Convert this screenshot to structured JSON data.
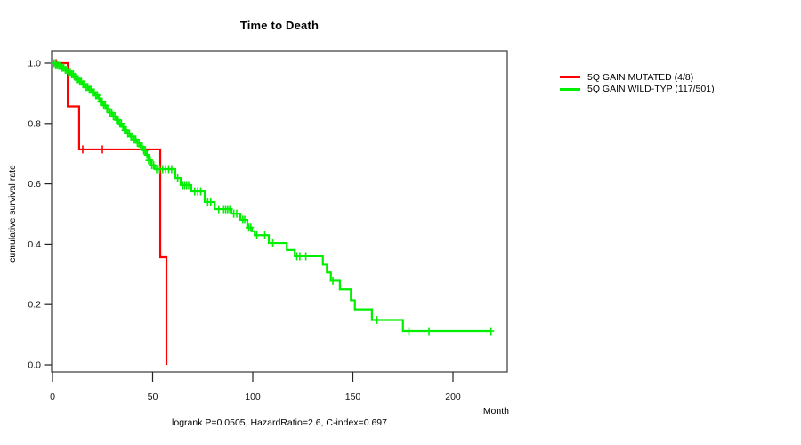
{
  "chart": {
    "title": "Time to Death",
    "ylabel": "cumulative survival rate",
    "xlabel": "Month",
    "footnote": "logrank P=0.0505, HazardRatio=2.6, C-index=0.697"
  },
  "chart_data": {
    "type": "line",
    "subtype": "kaplan-meier-step-curve",
    "title": "Time to Death",
    "xlabel": "Month",
    "ylabel": "cumulative survival rate",
    "xlim": [
      0,
      227
    ],
    "ylim": [
      0,
      1.0
    ],
    "xticks": [
      0,
      50,
      100,
      150,
      200
    ],
    "yticks": [
      0.0,
      0.2,
      0.4,
      0.6,
      0.8,
      1.0
    ],
    "grid": false,
    "legend_position": "right-outside",
    "axis_color": "#464646",
    "series": [
      {
        "name": "5Q GAIN MUTATED (4/8)",
        "color": "#ff0000",
        "end_month": 56.9,
        "steps": [
          [
            0,
            1.0
          ],
          [
            7.6,
            0.857
          ],
          [
            13.3,
            0.714
          ],
          [
            53.8,
            0.357
          ],
          [
            56.9,
            0.0
          ]
        ],
        "censor_months": [
          1.8,
          15.1,
          24.9
        ]
      },
      {
        "name": "5Q GAIN WILD-TYP (117/501)",
        "color": "#00ee00",
        "end_month": 219,
        "steps": [
          [
            0,
            1.0
          ],
          [
            1.5,
            0.996
          ],
          [
            3,
            0.991
          ],
          [
            4.5,
            0.985
          ],
          [
            6,
            0.978
          ],
          [
            7.5,
            0.971
          ],
          [
            9,
            0.963
          ],
          [
            10.5,
            0.955
          ],
          [
            12,
            0.947
          ],
          [
            13.5,
            0.939
          ],
          [
            15,
            0.93
          ],
          [
            16.5,
            0.921
          ],
          [
            18,
            0.912
          ],
          [
            19.5,
            0.903
          ],
          [
            21,
            0.894
          ],
          [
            22.5,
            0.884
          ],
          [
            24,
            0.872
          ],
          [
            25.5,
            0.86
          ],
          [
            27,
            0.848
          ],
          [
            28.5,
            0.836
          ],
          [
            30,
            0.824
          ],
          [
            31.5,
            0.812
          ],
          [
            33,
            0.8
          ],
          [
            34.5,
            0.789
          ],
          [
            36,
            0.778
          ],
          [
            37.5,
            0.767
          ],
          [
            39,
            0.757
          ],
          [
            40.5,
            0.747
          ],
          [
            42,
            0.736
          ],
          [
            43.5,
            0.724
          ],
          [
            45,
            0.711
          ],
          [
            46.5,
            0.696
          ],
          [
            48,
            0.678
          ],
          [
            49.5,
            0.662
          ],
          [
            51,
            0.649
          ],
          [
            61.3,
            0.619
          ],
          [
            64,
            0.596
          ],
          [
            69.3,
            0.575
          ],
          [
            76,
            0.54
          ],
          [
            81,
            0.516
          ],
          [
            89.3,
            0.501
          ],
          [
            93.8,
            0.481
          ],
          [
            97.3,
            0.455
          ],
          [
            99.5,
            0.443
          ],
          [
            101,
            0.43
          ],
          [
            108,
            0.404
          ],
          [
            117,
            0.381
          ],
          [
            121,
            0.36
          ],
          [
            135,
            0.332
          ],
          [
            137,
            0.306
          ],
          [
            139,
            0.279
          ],
          [
            143.5,
            0.25
          ],
          [
            149,
            0.214
          ],
          [
            151,
            0.184
          ],
          [
            159.5,
            0.149
          ],
          [
            175,
            0.112
          ]
        ],
        "censor_months": [
          0.8,
          1.6,
          2.4,
          3.2,
          4,
          4.8,
          5.6,
          6.4,
          7.2,
          8,
          8.8,
          9.6,
          10.4,
          11.2,
          12,
          12.8,
          13.6,
          14.4,
          15.2,
          16,
          16.8,
          17.6,
          18.4,
          19.2,
          20,
          20.8,
          21.6,
          22.4,
          23.2,
          24,
          24.8,
          25.6,
          26.4,
          27.2,
          28,
          28.8,
          29.6,
          30.4,
          31.2,
          32,
          32.8,
          33.6,
          34.4,
          35.2,
          36,
          36.8,
          37.6,
          38.4,
          39.2,
          40,
          40.8,
          41.6,
          42.4,
          43.2,
          44,
          44.8,
          45.6,
          46.4,
          47.2,
          48,
          48.8,
          49.6,
          50.5,
          52,
          53.5,
          55,
          56.5,
          58,
          59.5,
          62.5,
          65,
          66,
          67,
          68,
          71,
          72.5,
          74,
          77.5,
          79,
          83,
          85.5,
          86.5,
          87.5,
          88.5,
          90.5,
          92,
          95,
          96,
          98,
          99,
          102,
          106,
          110,
          122,
          123.5,
          126.5,
          140,
          162,
          178,
          188,
          219
        ]
      }
    ]
  }
}
